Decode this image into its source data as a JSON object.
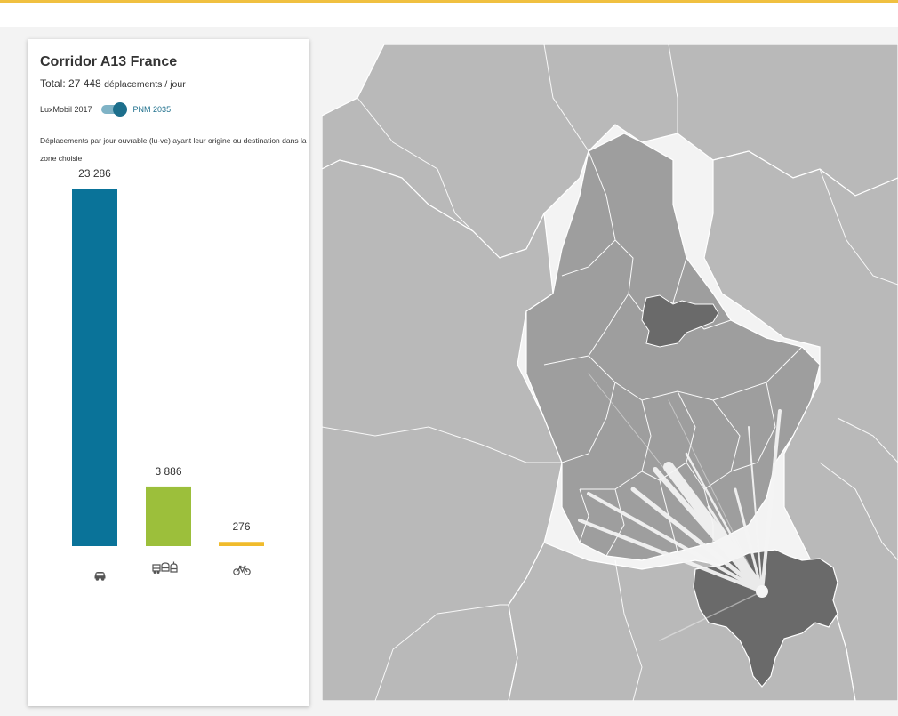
{
  "card": {
    "title": "Corridor A13 France",
    "total_prefix": "Total: 27 448",
    "total_suffix": "déplacements / jour",
    "toggle_left": "LuxMobil 2017",
    "toggle_right": "PNM 2035",
    "toggle_on": true,
    "description": "Déplacements par jour ouvrable (lu-ve) ayant leur origine ou destination dans la zone choisie"
  },
  "chart_data": {
    "type": "bar",
    "categories": [
      "car",
      "public-transport",
      "bicycle"
    ],
    "values": [
      23286,
      3886,
      276
    ],
    "data_labels": [
      "23 286",
      "3 886",
      "276"
    ],
    "colors": [
      "#0a7399",
      "#9cbf3b",
      "#f0bb2c"
    ],
    "icons": [
      "car-icon",
      "public-transport-icon",
      "bicycle-icon"
    ],
    "ylim": [
      0,
      23286
    ],
    "grid": false
  },
  "map": {
    "base_color": "#b9b9b9",
    "region_color": "#9e9e9e",
    "selected_color": "#6a6a6a",
    "border_color": "#ffffff",
    "flow_color": "#ffffff"
  }
}
